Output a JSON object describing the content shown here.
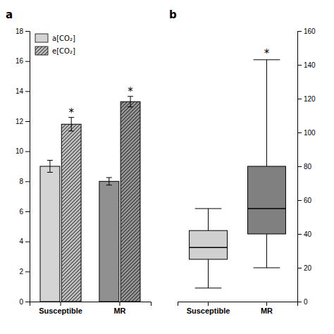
{
  "chart_data": [
    {
      "type": "bar",
      "title": "a",
      "categories": [
        "Susceptible",
        "MR"
      ],
      "series": [
        {
          "name": "a[CO₂]",
          "colors": [
            "#d4d4d4",
            "#909090"
          ],
          "values": [
            9.0,
            8.0
          ],
          "errors": [
            0.4,
            0.25
          ]
        },
        {
          "name": "e[CO₂]",
          "colors": [
            "#b8b8b8",
            "#909090"
          ],
          "values": [
            11.8,
            13.3
          ],
          "errors": [
            0.45,
            0.35
          ],
          "annotations": [
            "*",
            "*"
          ]
        }
      ],
      "ylim": [
        0,
        18
      ],
      "yticks": [
        0,
        2,
        4,
        6,
        8,
        10,
        12,
        14,
        16,
        18
      ],
      "legend": "upper left"
    },
    {
      "type": "box",
      "title": "b",
      "categories": [
        "Susceptible",
        "MR"
      ],
      "boxes": [
        {
          "whisker_low": 8,
          "q1": 25,
          "median": 32,
          "q3": 42,
          "whisker_high": 55,
          "color": "#d0d0d0"
        },
        {
          "whisker_low": 20,
          "q1": 40,
          "median": 55,
          "q3": 80,
          "whisker_high": 143,
          "color": "#808080",
          "annotation": "*"
        }
      ],
      "ylim": [
        0,
        160
      ],
      "yticks": [
        0,
        20,
        40,
        60,
        80,
        100,
        120,
        140,
        160
      ]
    }
  ]
}
